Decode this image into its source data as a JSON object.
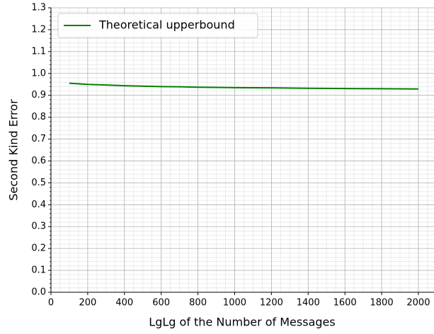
{
  "chart_data": {
    "type": "line",
    "xlabel": "LgLg of the Number of Messages",
    "ylabel": "Second Kind Error",
    "x": [
      100,
      200,
      300,
      400,
      500,
      600,
      700,
      800,
      900,
      1000,
      1200,
      1400,
      1600,
      1800,
      2000
    ],
    "series": [
      {
        "name": "Theoretical upperbound",
        "color": "#008000",
        "values": [
          0.955,
          0.95,
          0.947,
          0.944,
          0.942,
          0.94,
          0.939,
          0.937,
          0.936,
          0.935,
          0.934,
          0.932,
          0.931,
          0.93,
          0.929
        ]
      }
    ],
    "xlim": [
      0,
      2085
    ],
    "xticks": [
      0,
      200,
      400,
      600,
      800,
      1000,
      1200,
      1400,
      1600,
      1800,
      2000
    ],
    "ylim": [
      0,
      1.3
    ],
    "yticks": [
      {
        "value": 0,
        "label": "0.0"
      },
      0.1,
      0.2,
      0.3,
      0.4,
      0.5,
      0.6,
      0.7,
      0.8,
      0.9,
      {
        "value": 1,
        "label": "1.0"
      },
      1.1,
      1.2,
      1.3
    ],
    "grid": true,
    "minor_grid": true,
    "legend": "upper left"
  }
}
